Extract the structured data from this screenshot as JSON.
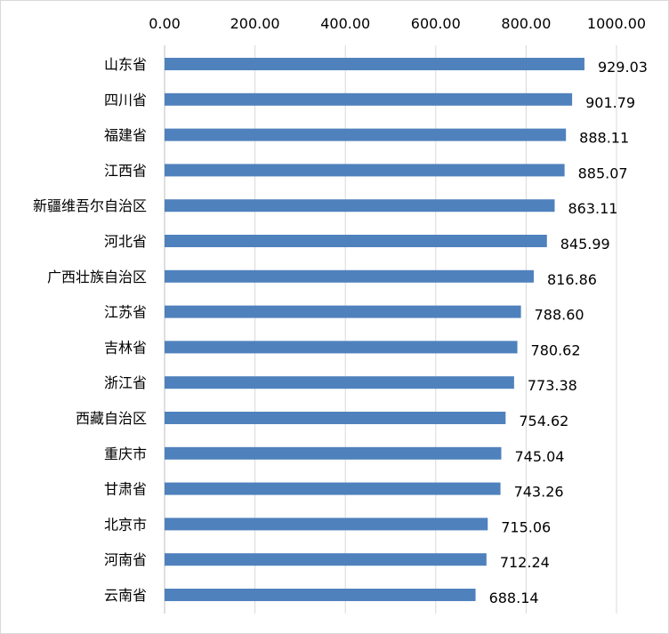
{
  "chart_data": {
    "type": "bar",
    "orientation": "horizontal",
    "title": "",
    "xlabel": "",
    "ylabel": "",
    "xlim": [
      0,
      1000
    ],
    "x_ticks": [
      "0.00",
      "200.00",
      "400.00",
      "600.00",
      "800.00",
      "1000.00"
    ],
    "axis_position": "top",
    "grid": "vertical",
    "legend": "none",
    "bar_color": "#4F81BD",
    "categories": [
      "山东省",
      "四川省",
      "福建省",
      "江西省",
      "新疆维吾尔自治区",
      "河北省",
      "广西壮族自治区",
      "江苏省",
      "吉林省",
      "浙江省",
      "西藏自治区",
      "重庆市",
      "甘肃省",
      "北京市",
      "河南省",
      "云南省"
    ],
    "values": [
      929.03,
      901.79,
      888.11,
      885.07,
      863.11,
      845.99,
      816.86,
      788.6,
      780.62,
      773.38,
      754.62,
      745.04,
      743.26,
      715.06,
      712.24,
      688.14
    ],
    "data_labels": [
      "929.03",
      "901.79",
      "888.11",
      "885.07",
      "863.11",
      "845.99",
      "816.86",
      "788.60",
      "780.62",
      "773.38",
      "754.62",
      "745.04",
      "743.26",
      "715.06",
      "712.24",
      "688.14"
    ]
  }
}
